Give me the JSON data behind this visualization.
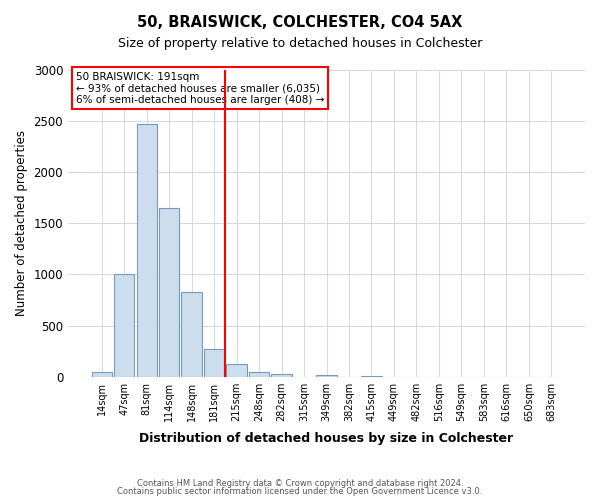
{
  "title": "50, BRAISWICK, COLCHESTER, CO4 5AX",
  "subtitle": "Size of property relative to detached houses in Colchester",
  "xlabel": "Distribution of detached houses by size in Colchester",
  "ylabel": "Number of detached properties",
  "bar_labels": [
    "14sqm",
    "47sqm",
    "81sqm",
    "114sqm",
    "148sqm",
    "181sqm",
    "215sqm",
    "248sqm",
    "282sqm",
    "315sqm",
    "349sqm",
    "382sqm",
    "415sqm",
    "449sqm",
    "482sqm",
    "516sqm",
    "549sqm",
    "583sqm",
    "616sqm",
    "650sqm",
    "683sqm"
  ],
  "bar_values": [
    50,
    1000,
    2470,
    1650,
    830,
    275,
    120,
    50,
    30,
    0,
    20,
    0,
    10,
    0,
    0,
    0,
    0,
    0,
    0,
    0,
    0
  ],
  "bar_color": "#ccdded",
  "bar_edge_color": "#7799bb",
  "vline_color": "red",
  "vline_pos": 5.5,
  "annotation_title": "50 BRAISWICK: 191sqm",
  "annotation_line1": "← 93% of detached houses are smaller (6,035)",
  "annotation_line2": "6% of semi-detached houses are larger (408) →",
  "annotation_box_color": "red",
  "ylim": [
    0,
    3000
  ],
  "yticks": [
    0,
    500,
    1000,
    1500,
    2000,
    2500,
    3000
  ],
  "footer1": "Contains HM Land Registry data © Crown copyright and database right 2024.",
  "footer2": "Contains public sector information licensed under the Open Government Licence v3.0.",
  "bg_color": "#ffffff",
  "grid_color": "#d0d8e8"
}
